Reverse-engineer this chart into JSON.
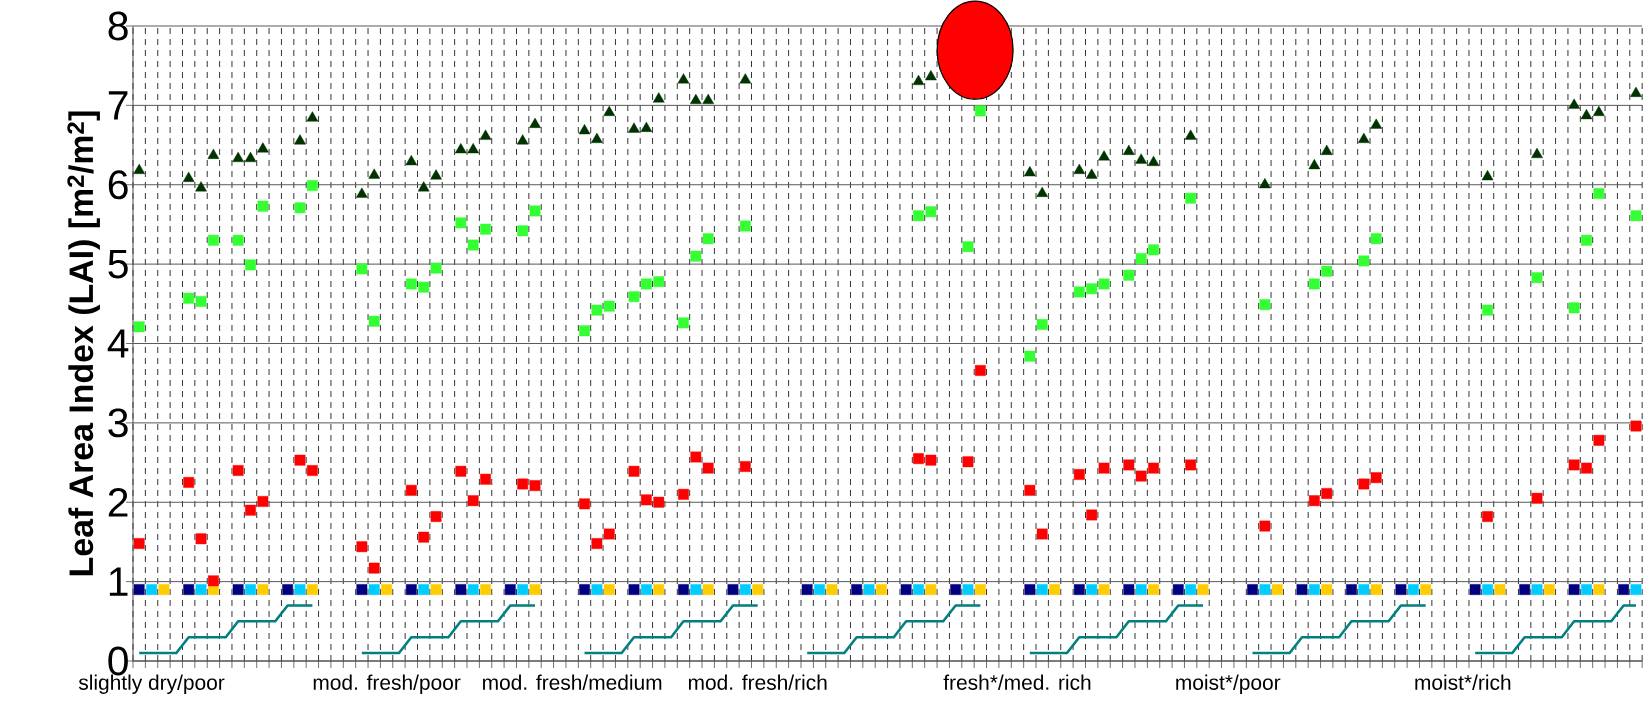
{
  "chart_data": {
    "type": "scatter",
    "ylabel": "Leaf Area Index (LAI) [m$^{2}$/m$^{2}$]",
    "ylim": [
      0,
      8
    ],
    "yticks": [
      0,
      1,
      2,
      3,
      4,
      5,
      6,
      7,
      8
    ],
    "grid": true,
    "categories": [
      null,
      "slightly dry/poor",
      null,
      null,
      null,
      null,
      null,
      null,
      null,
      null,
      null,
      null,
      null,
      null,
      null,
      null,
      null,
      null,
      null,
      null,
      "mod. fresh/poor",
      null,
      null,
      null,
      null,
      null,
      null,
      null,
      null,
      null,
      null,
      null,
      null,
      null,
      null,
      "mod. fresh/medium",
      null,
      null,
      null,
      null,
      null,
      null,
      null,
      null,
      null,
      null,
      null,
      null,
      null,
      null,
      "mod. fresh/rich",
      null,
      null,
      null,
      null,
      null,
      null,
      null,
      null,
      null,
      null,
      null,
      null,
      null,
      null,
      null,
      null,
      null,
      null,
      null,
      null,
      "fresh*/med. rich",
      null,
      null,
      null,
      null,
      null,
      null,
      null,
      null,
      null,
      null,
      null,
      null,
      null,
      null,
      null,
      null,
      "moist*/poor",
      null,
      null,
      null,
      null,
      null,
      null,
      null,
      null,
      null,
      null,
      null,
      null,
      null,
      null,
      null,
      null,
      null,
      null,
      "moist*/rich",
      null,
      null,
      null,
      null,
      null,
      null,
      null,
      null,
      null,
      null,
      null,
      null,
      null,
      null
    ],
    "series": [
      {
        "type": "line",
        "marker": "none",
        "line_style": "solid",
        "color": "#008080",
        "values": [
          0.1,
          0.1,
          0.1,
          0.1,
          0.3,
          0.3,
          0.3,
          0.3,
          0.5,
          0.5,
          0.5,
          0.5,
          0.7,
          0.7,
          0.7,
          null,
          null,
          null,
          0.1,
          0.1,
          0.1,
          0.1,
          0.3,
          0.3,
          0.3,
          0.3,
          0.5,
          0.5,
          0.5,
          0.5,
          0.7,
          0.7,
          0.7,
          null,
          null,
          null,
          0.1,
          0.1,
          0.1,
          0.1,
          0.3,
          0.3,
          0.3,
          0.3,
          0.5,
          0.5,
          0.5,
          0.5,
          0.7,
          0.7,
          0.7,
          null,
          null,
          null,
          0.1,
          0.1,
          0.1,
          0.1,
          0.3,
          0.3,
          0.3,
          0.3,
          0.5,
          0.5,
          0.5,
          0.5,
          0.7,
          0.7,
          0.7,
          null,
          null,
          null,
          0.1,
          0.1,
          0.1,
          0.1,
          0.3,
          0.3,
          0.3,
          0.3,
          0.5,
          0.5,
          0.5,
          0.5,
          0.7,
          0.7,
          0.7,
          null,
          null,
          null,
          0.1,
          0.1,
          0.1,
          0.1,
          0.3,
          0.3,
          0.3,
          0.3,
          0.5,
          0.5,
          0.5,
          0.5,
          0.7,
          0.7,
          0.7,
          null,
          null,
          null,
          0.1,
          0.1,
          0.1,
          0.1,
          0.3,
          0.3,
          0.3,
          0.3,
          0.5,
          0.5,
          0.5,
          0.5,
          0.7,
          0.7
        ]
      },
      {
        "marker": "square",
        "color": "#000080",
        "values": [
          0.9,
          null,
          null,
          null,
          0.9,
          null,
          null,
          null,
          0.9,
          null,
          null,
          null,
          0.9,
          null,
          null,
          null,
          null,
          null,
          0.9,
          null,
          null,
          null,
          0.9,
          null,
          null,
          null,
          0.9,
          null,
          null,
          null,
          0.9,
          null,
          null,
          null,
          null,
          null,
          0.9,
          null,
          null,
          null,
          0.9,
          null,
          null,
          null,
          0.9,
          null,
          null,
          null,
          0.9,
          null,
          null,
          null,
          null,
          null,
          0.9,
          null,
          null,
          null,
          0.9,
          null,
          null,
          null,
          0.9,
          null,
          null,
          null,
          0.9,
          null,
          null,
          null,
          null,
          null,
          0.9,
          null,
          null,
          null,
          0.9,
          null,
          null,
          null,
          0.9,
          null,
          null,
          null,
          0.9,
          null,
          null,
          null,
          null,
          null,
          0.9,
          null,
          null,
          null,
          0.9,
          null,
          null,
          null,
          0.9,
          null,
          null,
          null,
          0.9,
          null,
          null,
          null,
          null,
          null,
          0.9,
          null,
          null,
          null,
          0.9,
          null,
          null,
          null,
          0.9,
          null,
          null,
          null,
          0.9,
          null
        ]
      },
      {
        "marker": "square",
        "color": "#00ccff",
        "values": [
          null,
          0.9,
          null,
          null,
          null,
          0.9,
          null,
          null,
          null,
          0.9,
          null,
          null,
          null,
          0.9,
          null,
          null,
          null,
          null,
          null,
          0.9,
          null,
          null,
          null,
          0.9,
          null,
          null,
          null,
          0.9,
          null,
          null,
          null,
          0.9,
          null,
          null,
          null,
          null,
          null,
          0.9,
          null,
          null,
          null,
          0.9,
          null,
          null,
          null,
          0.9,
          null,
          null,
          null,
          0.9,
          null,
          null,
          null,
          null,
          null,
          0.9,
          null,
          null,
          null,
          0.9,
          null,
          null,
          null,
          0.9,
          null,
          null,
          null,
          0.9,
          null,
          null,
          null,
          null,
          null,
          0.9,
          null,
          null,
          null,
          0.9,
          null,
          null,
          null,
          0.9,
          null,
          null,
          null,
          0.9,
          null,
          null,
          null,
          null,
          null,
          0.9,
          null,
          null,
          null,
          0.9,
          null,
          null,
          null,
          0.9,
          null,
          null,
          null,
          0.9,
          null,
          null,
          null,
          null,
          null,
          0.9,
          null,
          null,
          null,
          0.9,
          null,
          null,
          null,
          0.9,
          null,
          null,
          null,
          0.9
        ]
      },
      {
        "marker": "square",
        "color": "#ffcc00",
        "values": [
          null,
          null,
          0.9,
          null,
          null,
          null,
          0.9,
          null,
          null,
          null,
          0.9,
          null,
          null,
          null,
          0.9,
          null,
          null,
          null,
          null,
          null,
          0.9,
          null,
          null,
          null,
          0.9,
          null,
          null,
          null,
          0.9,
          null,
          null,
          null,
          0.9,
          null,
          null,
          null,
          null,
          null,
          0.9,
          null,
          null,
          null,
          0.9,
          null,
          null,
          null,
          0.9,
          null,
          null,
          null,
          0.9,
          null,
          null,
          null,
          null,
          null,
          0.9,
          null,
          null,
          null,
          0.9,
          null,
          null,
          null,
          0.9,
          null,
          null,
          null,
          0.9,
          null,
          null,
          null,
          null,
          null,
          0.9,
          null,
          null,
          null,
          0.9,
          null,
          null,
          null,
          0.9,
          null,
          null,
          null,
          0.9,
          null,
          null,
          null,
          null,
          null,
          0.9,
          null,
          null,
          null,
          0.9,
          null,
          null,
          null,
          0.9,
          null,
          null,
          null,
          0.9,
          null,
          null,
          null,
          null,
          null,
          0.9,
          null,
          null,
          null,
          0.9,
          null,
          null,
          null,
          0.9,
          null,
          null,
          null
        ]
      },
      {
        "marker": "square",
        "color": "#ff0000",
        "values": [
          1.48,
          null,
          null,
          null,
          2.25,
          1.54,
          1.01,
          null,
          2.4,
          1.9,
          2.01,
          null,
          null,
          2.53,
          2.4,
          null,
          null,
          null,
          1.44,
          1.17,
          null,
          null,
          2.15,
          1.56,
          1.82,
          null,
          2.39,
          2.02,
          2.29,
          null,
          null,
          2.23,
          2.21,
          null,
          null,
          null,
          1.98,
          1.48,
          1.6,
          null,
          2.39,
          2.03,
          2.0,
          null,
          2.1,
          2.57,
          2.43,
          null,
          null,
          2.45,
          null,
          null,
          null,
          null,
          null,
          null,
          null,
          null,
          null,
          null,
          null,
          null,
          null,
          2.55,
          2.53,
          null,
          null,
          2.51,
          3.66,
          null,
          null,
          null,
          2.15,
          1.6,
          null,
          null,
          2.35,
          1.84,
          2.43,
          null,
          2.47,
          2.33,
          2.43,
          null,
          null,
          2.47,
          null,
          null,
          null,
          null,
          null,
          1.7,
          null,
          null,
          null,
          2.02,
          2.11,
          null,
          null,
          2.23,
          2.31,
          null,
          null,
          null,
          null,
          null,
          null,
          null,
          null,
          1.82,
          null,
          null,
          null,
          2.05,
          null,
          null,
          2.47,
          2.43,
          2.78,
          null,
          null,
          2.96
        ]
      },
      {
        "marker": "square",
        "color": "#33ff33",
        "values": [
          4.21,
          null,
          null,
          null,
          4.57,
          4.53,
          5.3,
          null,
          5.3,
          4.99,
          5.73,
          null,
          null,
          5.71,
          5.99,
          null,
          null,
          null,
          4.94,
          4.28,
          null,
          null,
          4.75,
          4.71,
          4.95,
          null,
          5.52,
          5.24,
          5.44,
          null,
          null,
          5.42,
          5.67,
          null,
          null,
          null,
          4.16,
          4.42,
          4.47,
          null,
          4.59,
          4.75,
          4.78,
          null,
          4.26,
          5.1,
          5.32,
          null,
          null,
          5.48,
          null,
          null,
          null,
          null,
          null,
          null,
          null,
          null,
          null,
          null,
          null,
          null,
          null,
          5.61,
          5.66,
          null,
          null,
          5.22,
          6.93,
          null,
          null,
          null,
          3.84,
          4.24,
          null,
          null,
          4.65,
          4.69,
          4.75,
          null,
          4.86,
          5.07,
          5.18,
          null,
          null,
          5.83,
          null,
          null,
          null,
          null,
          null,
          4.49,
          null,
          null,
          null,
          4.75,
          4.91,
          null,
          null,
          5.04,
          5.32,
          null,
          null,
          null,
          null,
          null,
          null,
          null,
          null,
          4.42,
          null,
          null,
          null,
          4.83,
          null,
          null,
          4.45,
          5.3,
          5.89,
          null,
          null,
          5.61
        ]
      },
      {
        "marker": "triangle",
        "color": "#003300",
        "values": [
          6.18,
          null,
          null,
          null,
          6.08,
          5.96,
          6.37,
          null,
          6.33,
          6.33,
          6.45,
          null,
          null,
          6.55,
          6.84,
          null,
          null,
          null,
          5.88,
          6.12,
          null,
          null,
          6.29,
          5.96,
          6.11,
          null,
          6.44,
          6.44,
          6.61,
          null,
          null,
          6.55,
          6.76,
          null,
          null,
          null,
          6.68,
          6.57,
          6.91,
          null,
          6.7,
          6.71,
          7.08,
          null,
          7.32,
          7.06,
          7.06,
          null,
          null,
          7.32,
          null,
          null,
          null,
          null,
          null,
          null,
          null,
          null,
          null,
          null,
          null,
          null,
          null,
          7.3,
          7.36,
          null,
          null,
          null,
          null,
          null,
          null,
          null,
          6.15,
          5.89,
          null,
          null,
          6.18,
          6.12,
          6.35,
          null,
          6.42,
          6.31,
          6.28,
          null,
          null,
          6.61,
          null,
          null,
          null,
          null,
          null,
          6.0,
          null,
          null,
          null,
          6.24,
          6.42,
          null,
          null,
          6.57,
          6.75,
          null,
          null,
          null,
          null,
          null,
          null,
          null,
          null,
          6.1,
          null,
          null,
          null,
          6.38,
          null,
          null,
          7.0,
          6.87,
          6.91,
          null,
          null,
          7.15
        ]
      }
    ]
  }
}
